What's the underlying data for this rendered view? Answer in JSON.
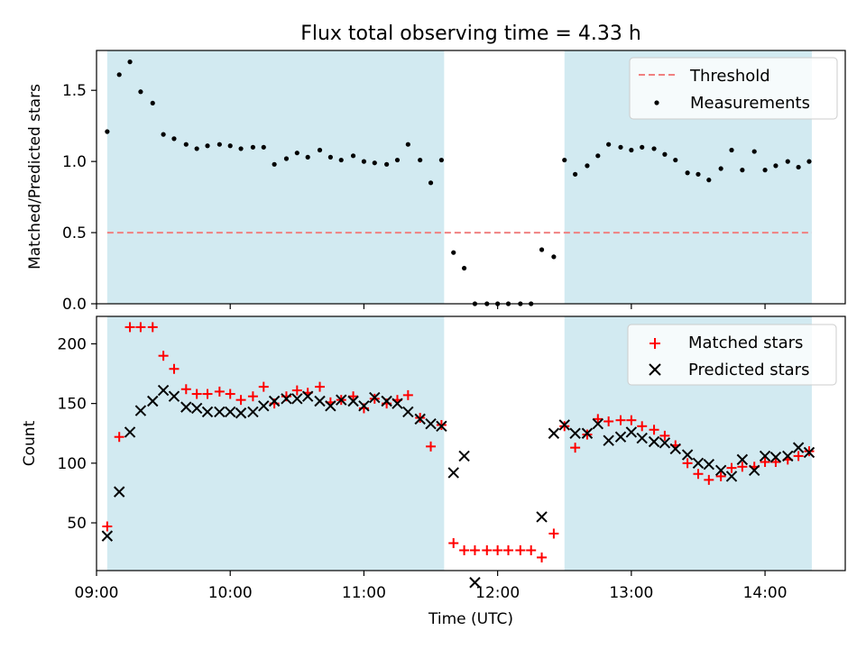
{
  "title": "Flux total observing time = 4.33 h",
  "colors": {
    "band": "#add8e6",
    "threshold": "#f08080",
    "matched": "#ff0000",
    "predicted": "#000000",
    "measurement": "#000000"
  },
  "chart_data": [
    {
      "type": "scatter",
      "ylabel": "Matched/Predicted stars",
      "xlim": [
        9.0,
        14.6
      ],
      "ylim": [
        0,
        1.78
      ],
      "yticks": [
        0.0,
        0.5,
        1.0,
        1.5
      ],
      "ytick_labels": [
        "0.0",
        "0.5",
        "1.0",
        "1.5"
      ],
      "shaded_intervals": [
        [
          9.08,
          11.6
        ],
        [
          12.5,
          14.35
        ]
      ],
      "threshold": {
        "name": "Threshold",
        "value": 0.5,
        "x_range": [
          9.08,
          14.35
        ]
      },
      "legend": {
        "location": "top-right",
        "entries": [
          "Threshold",
          "Measurements"
        ]
      },
      "series": [
        {
          "name": "Measurements",
          "x": [
            9.08,
            9.17,
            9.25,
            9.33,
            9.42,
            9.5,
            9.58,
            9.67,
            9.75,
            9.83,
            9.92,
            10.0,
            10.08,
            10.17,
            10.25,
            10.33,
            10.42,
            10.5,
            10.58,
            10.67,
            10.75,
            10.83,
            10.92,
            11.0,
            11.08,
            11.17,
            11.25,
            11.33,
            11.42,
            11.5,
            11.58,
            11.67,
            11.75,
            11.83,
            11.92,
            12.0,
            12.08,
            12.17,
            12.25,
            12.33,
            12.42,
            12.5,
            12.58,
            12.67,
            12.75,
            12.83,
            12.92,
            13.0,
            13.08,
            13.17,
            13.25,
            13.33,
            13.42,
            13.5,
            13.58,
            13.67,
            13.75,
            13.83,
            13.92,
            14.0,
            14.08,
            14.17,
            14.25,
            14.33
          ],
          "y": [
            1.21,
            1.61,
            1.7,
            1.49,
            1.41,
            1.19,
            1.16,
            1.12,
            1.09,
            1.11,
            1.12,
            1.11,
            1.09,
            1.1,
            1.1,
            0.98,
            1.02,
            1.06,
            1.03,
            1.08,
            1.03,
            1.01,
            1.04,
            1.0,
            0.99,
            0.98,
            1.01,
            1.12,
            1.01,
            0.85,
            1.01,
            0.36,
            0.25,
            0.0,
            0.0,
            0.0,
            0.0,
            0.0,
            0.0,
            0.38,
            0.33,
            1.01,
            0.91,
            0.97,
            1.04,
            1.12,
            1.1,
            1.08,
            1.1,
            1.09,
            1.05,
            1.01,
            0.92,
            0.91,
            0.87,
            0.95,
            1.08,
            0.94,
            1.07,
            0.94,
            0.97,
            1.0,
            0.96,
            1.0
          ]
        }
      ]
    },
    {
      "type": "scatter",
      "xlabel": "Time (UTC)",
      "ylabel": "Count",
      "xlim": [
        9.0,
        14.6
      ],
      "ylim": [
        10,
        223
      ],
      "xticks": [
        9,
        10,
        11,
        12,
        13,
        14
      ],
      "xtick_labels": [
        "09:00",
        "10:00",
        "11:00",
        "12:00",
        "13:00",
        "14:00"
      ],
      "yticks": [
        50,
        100,
        150,
        200
      ],
      "ytick_labels": [
        "50",
        "100",
        "150",
        "200"
      ],
      "shaded_intervals": [
        [
          9.08,
          11.6
        ],
        [
          12.5,
          14.35
        ]
      ],
      "legend": {
        "location": "top-right",
        "entries": [
          "Matched stars",
          "Predicted stars"
        ]
      },
      "series": [
        {
          "name": "Matched stars",
          "marker": "+",
          "x": [
            9.08,
            9.17,
            9.25,
            9.33,
            9.42,
            9.5,
            9.58,
            9.67,
            9.75,
            9.83,
            9.92,
            10.0,
            10.08,
            10.17,
            10.25,
            10.33,
            10.42,
            10.5,
            10.58,
            10.67,
            10.75,
            10.83,
            10.92,
            11.0,
            11.08,
            11.17,
            11.25,
            11.33,
            11.42,
            11.5,
            11.58,
            11.67,
            11.75,
            11.83,
            11.92,
            12.0,
            12.08,
            12.17,
            12.25,
            12.33,
            12.42,
            12.5,
            12.58,
            12.67,
            12.75,
            12.83,
            12.92,
            13.0,
            13.08,
            13.17,
            13.25,
            13.33,
            13.42,
            13.5,
            13.58,
            13.67,
            13.75,
            13.83,
            13.92,
            14.0,
            14.08,
            14.17,
            14.25,
            14.33
          ],
          "y": [
            47,
            122,
            214,
            214,
            214,
            190,
            179,
            162,
            158,
            158,
            160,
            158,
            153,
            156,
            164,
            150,
            156,
            161,
            159,
            164,
            151,
            153,
            156,
            146,
            154,
            150,
            153,
            157,
            138,
            114,
            132,
            33,
            27,
            27,
            27,
            27,
            27,
            27,
            27,
            21,
            41,
            131,
            113,
            124,
            137,
            135,
            136,
            136,
            131,
            128,
            123,
            115,
            100,
            91,
            86,
            89,
            96,
            97,
            97,
            101,
            101,
            103,
            106,
            110
          ]
        },
        {
          "name": "Predicted stars",
          "marker": "x",
          "x": [
            9.08,
            9.17,
            9.25,
            9.33,
            9.42,
            9.5,
            9.58,
            9.67,
            9.75,
            9.83,
            9.92,
            10.0,
            10.08,
            10.17,
            10.25,
            10.33,
            10.42,
            10.5,
            10.58,
            10.67,
            10.75,
            10.83,
            10.92,
            11.0,
            11.08,
            11.17,
            11.25,
            11.33,
            11.42,
            11.5,
            11.58,
            11.67,
            11.75,
            11.83,
            12.33,
            12.42,
            12.5,
            12.58,
            12.67,
            12.75,
            12.83,
            12.92,
            13.0,
            13.08,
            13.17,
            13.25,
            13.33,
            13.42,
            13.5,
            13.58,
            13.67,
            13.75,
            13.83,
            13.92,
            14.0,
            14.08,
            14.17,
            14.25,
            14.33
          ],
          "y": [
            39,
            76,
            126,
            144,
            152,
            161,
            156,
            147,
            146,
            143,
            143,
            143,
            142,
            143,
            148,
            152,
            154,
            154,
            156,
            152,
            148,
            153,
            152,
            148,
            155,
            152,
            150,
            143,
            137,
            133,
            131,
            92,
            106,
            0,
            55,
            125,
            132,
            125,
            125,
            133,
            119,
            122,
            126,
            121,
            118,
            117,
            112,
            107,
            100,
            99,
            94,
            89,
            103,
            94,
            106,
            105,
            106,
            113,
            109
          ]
        }
      ]
    }
  ]
}
